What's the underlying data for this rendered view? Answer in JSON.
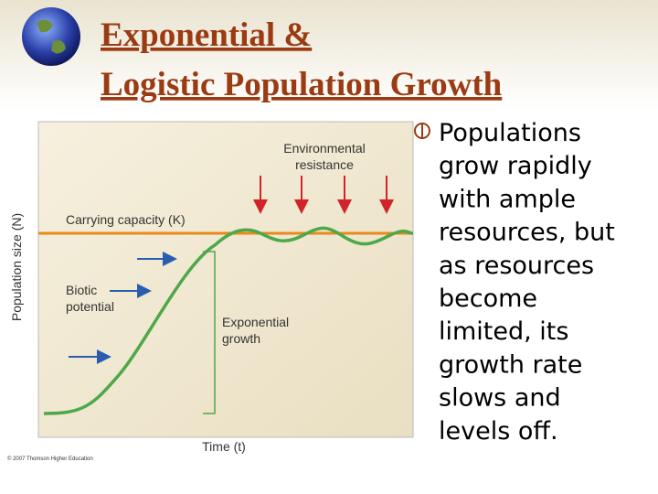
{
  "title": {
    "line1": "Exponential &",
    "line2": "Logistic Population Growth"
  },
  "figure": {
    "environmental_resistance_1": "Environmental",
    "environmental_resistance_2": "resistance",
    "carrying_capacity": "Carrying capacity (K)",
    "biotic_potential_1": "Biotic",
    "biotic_potential_2": "potential",
    "exponential_growth_1": "Exponential",
    "exponential_growth_2": "growth",
    "y_label": "Population size (N)",
    "x_label": "Time (t)",
    "copyright": "© 2007 Thomson Higher Education"
  },
  "body": {
    "lines": [
      "Populations",
      "grow rapidly",
      "with ample",
      "resources, but",
      "as resources",
      "become",
      "limited, its",
      "growth rate",
      "slows and",
      "levels off."
    ]
  }
}
